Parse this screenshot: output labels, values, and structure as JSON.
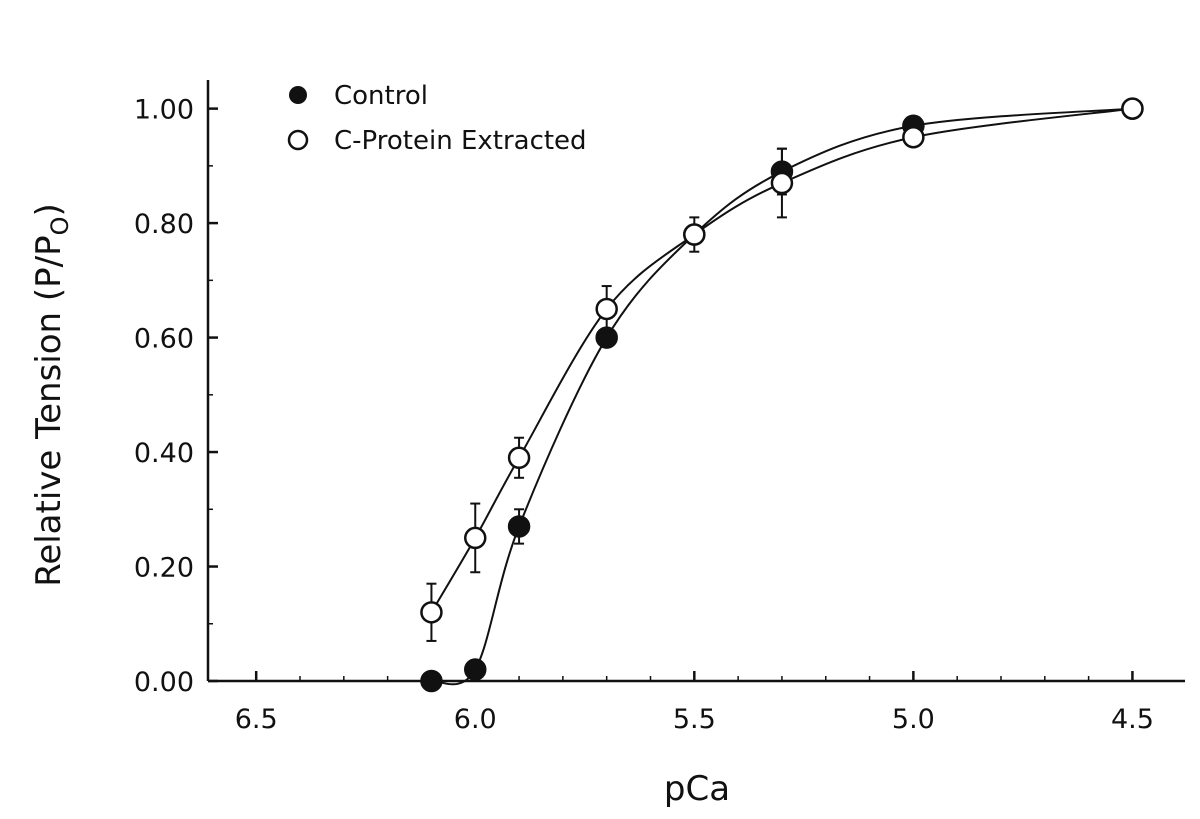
{
  "chart_data": {
    "type": "line",
    "title": "",
    "xlabel": "pCa",
    "ylabel": "Relative Tension (P/P",
    "ylabel_sub": "O",
    "ylabel_close": ")",
    "xlim": [
      6.61,
      4.38
    ],
    "ylim": [
      0,
      1.05
    ],
    "x_reversed": true,
    "grid": false,
    "legend_position": "top-left",
    "xticks": [
      6.5,
      6.0,
      5.5,
      5.0,
      4.5
    ],
    "xtick_labels": [
      "6.5",
      "6.0",
      "5.5",
      "5.0",
      "4.5"
    ],
    "yticks": [
      0,
      0.2,
      0.4,
      0.6,
      0.8,
      1.0
    ],
    "ytick_labels": [
      "0.00",
      "0.20",
      "0.40",
      "0.60",
      "0.80",
      "1.00"
    ],
    "series": [
      {
        "name": "Control",
        "marker": "filled-circle",
        "x": [
          6.1,
          6.0,
          5.9,
          5.7,
          5.5,
          5.3,
          5.0,
          4.5
        ],
        "y": [
          0.0,
          0.02,
          0.27,
          0.6,
          0.78,
          0.89,
          0.97,
          1.0
        ],
        "err": [
          0,
          0,
          0.03,
          0,
          0.03,
          0.04,
          0,
          0
        ]
      },
      {
        "name": "C-Protein Extracted",
        "marker": "open-circle",
        "x": [
          6.1,
          6.0,
          5.9,
          5.7,
          5.5,
          5.3,
          5.0,
          4.5
        ],
        "y": [
          0.12,
          0.25,
          0.39,
          0.65,
          0.78,
          0.87,
          0.95,
          1.0
        ],
        "err": [
          0.05,
          0.06,
          0.035,
          0.04,
          0,
          0.06,
          0,
          0
        ]
      }
    ]
  }
}
